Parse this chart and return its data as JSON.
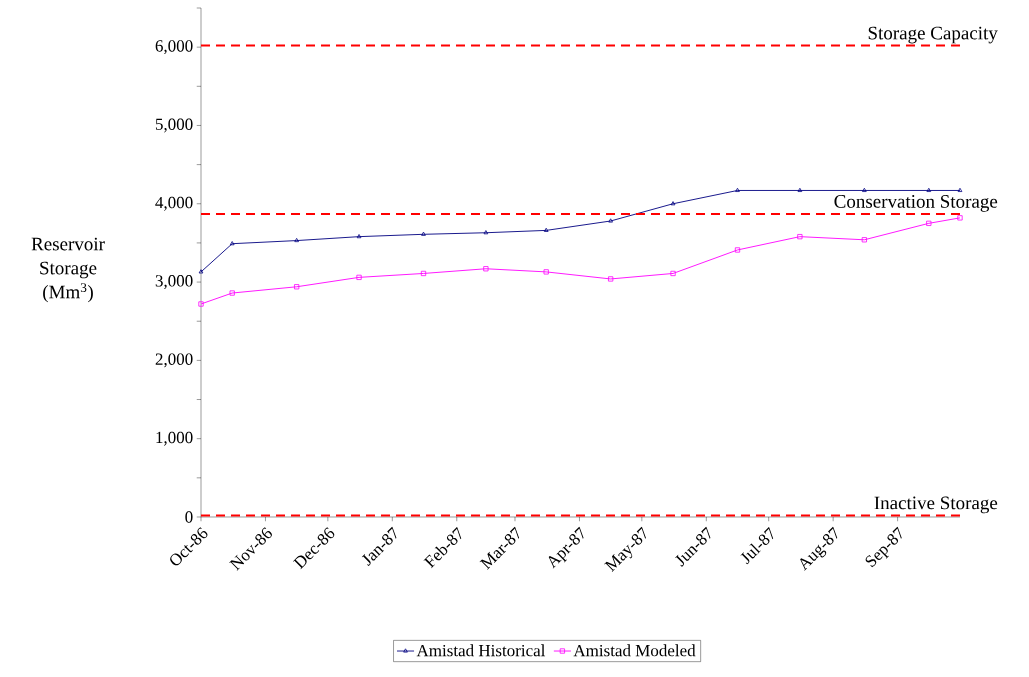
{
  "chart_data": {
    "type": "line",
    "ylabel": "Reservoir Storage (Mm$^{3}$)",
    "x": [
      "1986-10-01",
      "1986-10-16",
      "1986-11-16",
      "1986-12-16",
      "1987-01-16",
      "1987-02-15",
      "1987-03-16",
      "1987-04-16",
      "1987-05-16",
      "1987-06-16",
      "1987-07-16",
      "1987-08-16",
      "1987-09-16",
      "1987-10-01"
    ],
    "series": [
      {
        "name": "Amistad Historical",
        "color": "#000080",
        "marker": "triangle",
        "values": [
          3130,
          3490,
          3530,
          3580,
          3610,
          3630,
          3660,
          3780,
          4000,
          4170,
          4170,
          4170,
          4170,
          4170
        ]
      },
      {
        "name": "Amistad Modeled",
        "color": "#ff00ff",
        "marker": "square",
        "values": [
          2720,
          2860,
          2940,
          3060,
          3110,
          3170,
          3130,
          3040,
          3110,
          3410,
          3580,
          3540,
          3750,
          3820
        ]
      }
    ],
    "xlim": [
      "1986-10-01",
      "1987-10-01"
    ],
    "xticks": [
      {
        "value": "1986-10-01",
        "label": "Oct-86"
      },
      {
        "value": "1986-11-01",
        "label": "Nov-86"
      },
      {
        "value": "1986-12-01",
        "label": "Dec-86"
      },
      {
        "value": "1987-01-01",
        "label": "Jan-87"
      },
      {
        "value": "1987-02-01",
        "label": "Feb-87"
      },
      {
        "value": "1987-03-01",
        "label": "Mar-87"
      },
      {
        "value": "1987-04-01",
        "label": "Apr-87"
      },
      {
        "value": "1987-05-01",
        "label": "May-87"
      },
      {
        "value": "1987-06-01",
        "label": "Jun-87"
      },
      {
        "value": "1987-07-01",
        "label": "Jul-87"
      },
      {
        "value": "1987-08-01",
        "label": "Aug-87"
      },
      {
        "value": "1987-09-01",
        "label": "Sep-87"
      }
    ],
    "ylim": [
      0,
      6500
    ],
    "yticks": [
      {
        "value": 0,
        "label": "0"
      },
      {
        "value": 500,
        "label": null
      },
      {
        "value": 1000,
        "label": "1,000"
      },
      {
        "value": 1500,
        "label": null
      },
      {
        "value": 2000,
        "label": "2,000"
      },
      {
        "value": 2500,
        "label": null
      },
      {
        "value": 3000,
        "label": "3,000"
      },
      {
        "value": 3500,
        "label": null
      },
      {
        "value": 4000,
        "label": "4,000"
      },
      {
        "value": 4500,
        "label": null
      },
      {
        "value": 5000,
        "label": "5,000"
      },
      {
        "value": 5500,
        "label": null
      },
      {
        "value": 6000,
        "label": "6,000"
      },
      {
        "value": 6500,
        "label": null
      }
    ],
    "ref_lines": [
      {
        "axis": "y",
        "value": 6020,
        "label": "Storage Capacity",
        "color": "#ff0000",
        "line_style": "dashed"
      },
      {
        "axis": "y",
        "value": 3870,
        "label": "Conservation Storage",
        "color": "#ff0000",
        "line_style": "dashed"
      },
      {
        "axis": "y",
        "value": 20,
        "label": "Inactive Storage",
        "color": "#ff0000",
        "line_style": "dashed"
      }
    ],
    "grid": false,
    "legend": "bottom",
    "line_style": "solid"
  }
}
